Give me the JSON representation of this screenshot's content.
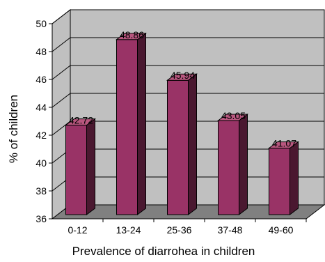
{
  "chart_data": {
    "type": "bar",
    "title": "",
    "xlabel": "Prevalence of diarrohea in children",
    "ylabel": "% of children",
    "categories": [
      "0-12",
      "13-24",
      "25-36",
      "37-48",
      "49-60"
    ],
    "values": [
      42.72,
      48.86,
      45.94,
      43.05,
      41.07
    ],
    "value_labels": [
      "42.72",
      "48.86",
      "45.94",
      "43.05",
      "41.07"
    ],
    "ylim": [
      36,
      50
    ],
    "yticks": [
      "36",
      "38",
      "40",
      "42",
      "44",
      "46",
      "48",
      "50"
    ],
    "grid": true,
    "legend": "none",
    "style": "3d-column",
    "colors": {
      "bar_front": "#993366",
      "bar_side": "#4a1830",
      "bar_top": "#b8577f",
      "back_wall": "#c0c0c0",
      "floor": "#808080",
      "gridline": "#000000"
    }
  }
}
